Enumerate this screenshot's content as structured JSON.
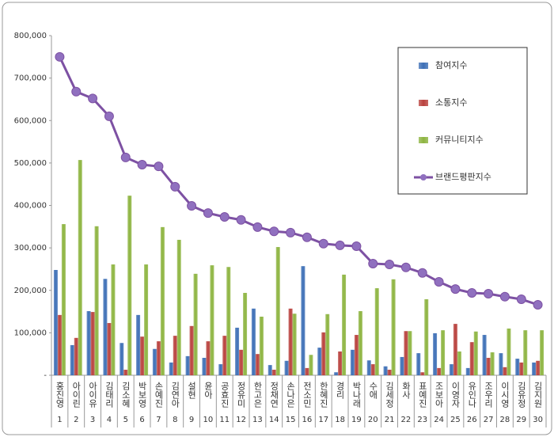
{
  "chart_data": {
    "type": "bar-line",
    "categories": [
      "홍진영",
      "아이린",
      "아이유",
      "김태리",
      "김소혜",
      "박보영",
      "손예진",
      "김연아",
      "설현",
      "윤아",
      "공효진",
      "정유미",
      "한고은",
      "정채연",
      "손나은",
      "전소민",
      "한혜진",
      "경리",
      "박나래",
      "수애",
      "김세정",
      "화사",
      "표예진",
      "조보아",
      "이영자",
      "유인나",
      "조우리",
      "이시영",
      "김유정",
      "김지원"
    ],
    "category_ranks": [
      1,
      2,
      3,
      4,
      5,
      6,
      7,
      8,
      9,
      10,
      11,
      12,
      13,
      14,
      15,
      16,
      17,
      18,
      19,
      20,
      21,
      22,
      23,
      24,
      25,
      26,
      27,
      28,
      29,
      30
    ],
    "series": [
      {
        "name": "참여지수",
        "type": "bar",
        "color": "#3d6fb6",
        "values": [
          248000,
          71000,
          151000,
          227000,
          76000,
          142000,
          62000,
          30000,
          45000,
          41000,
          26000,
          112000,
          157000,
          24000,
          34000,
          257000,
          65000,
          7000,
          60000,
          35000,
          21000,
          43000,
          52000,
          99000,
          26000,
          17000,
          95000,
          52000,
          39000,
          30000
        ]
      },
      {
        "name": "소통지수",
        "type": "bar",
        "color": "#b9413d",
        "values": [
          142000,
          88000,
          149000,
          123000,
          13000,
          91000,
          80000,
          93000,
          116000,
          80000,
          93000,
          60000,
          50000,
          13000,
          157000,
          17000,
          101000,
          56000,
          95000,
          26000,
          13000,
          104000,
          7000,
          17000,
          121000,
          78000,
          41000,
          19000,
          30000,
          34000
        ]
      },
      {
        "name": "커뮤니티지수",
        "type": "bar",
        "color": "#8db440",
        "values": [
          356000,
          507000,
          351000,
          261000,
          423000,
          261000,
          349000,
          319000,
          239000,
          259000,
          255000,
          194000,
          138000,
          302000,
          145000,
          48000,
          144000,
          237000,
          151000,
          205000,
          226000,
          104000,
          179000,
          106000,
          56000,
          103000,
          54000,
          110000,
          106000,
          106000
        ]
      },
      {
        "name": "브랜드평판지수",
        "type": "line",
        "color": "#7d51a3",
        "values": [
          750000,
          668000,
          652000,
          610000,
          513000,
          496000,
          492000,
          444000,
          399000,
          382000,
          373000,
          366000,
          349000,
          339000,
          336000,
          325000,
          310000,
          306000,
          304000,
          263000,
          261000,
          254000,
          241000,
          220000,
          203000,
          194000,
          192000,
          185000,
          179000,
          166000
        ]
      }
    ],
    "ylim": [
      0,
      800000
    ],
    "yticks": [
      {
        "value": 0,
        "label": "-"
      },
      {
        "value": 100000,
        "label": "100,000"
      },
      {
        "value": 200000,
        "label": "200,000"
      },
      {
        "value": 300000,
        "label": "300,000"
      },
      {
        "value": 400000,
        "label": "400,000"
      },
      {
        "value": 500000,
        "label": "500,000"
      },
      {
        "value": 600000,
        "label": "600,000"
      },
      {
        "value": 700000,
        "label": "700,000"
      },
      {
        "value": 800000,
        "label": "800,000"
      }
    ],
    "legend": "top-right"
  }
}
